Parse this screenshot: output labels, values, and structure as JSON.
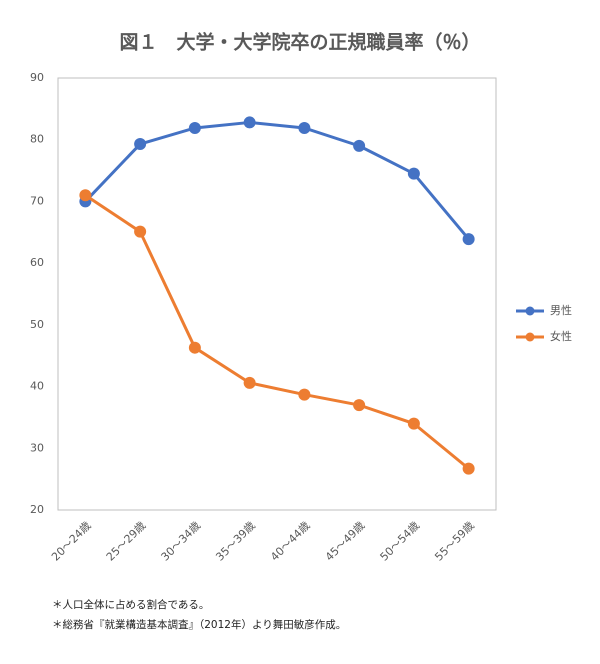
{
  "chart_data": {
    "type": "line",
    "title": "図１　大学・大学院卒の正規職員率（％）",
    "categories": [
      "20～24歳",
      "25～29歳",
      "30～34歳",
      "35～39歳",
      "40～44歳",
      "45～49歳",
      "50～54歳",
      "55～59歳"
    ],
    "series": [
      {
        "name": "男性",
        "color": "#4472c4",
        "values": [
          70.0,
          79.3,
          81.9,
          82.8,
          81.9,
          79.0,
          74.5,
          63.9
        ]
      },
      {
        "name": "女性",
        "color": "#ed7d31",
        "values": [
          71.0,
          65.1,
          46.3,
          40.6,
          38.7,
          37.0,
          34.0,
          26.7
        ]
      }
    ],
    "ylim": [
      20,
      90
    ],
    "yticks": [
      20,
      30,
      40,
      50,
      60,
      70,
      80,
      90
    ],
    "grid": false,
    "legend": "right",
    "notes": [
      "＊人口全体に占める割合である。",
      "＊総務省『就業構造基本調査』（2012年）より舞田敏彦作成。"
    ]
  }
}
